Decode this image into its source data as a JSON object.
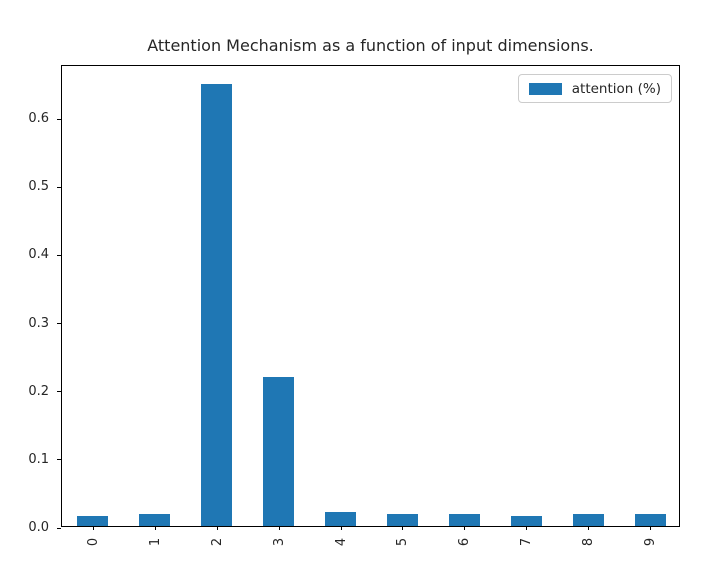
{
  "figure": {
    "title": "Attention Mechanism as a function of input dimensions."
  },
  "legend": {
    "label": "attention (%)"
  },
  "colors": {
    "bar": "#1f77b4",
    "axis": "#000000",
    "text": "#262626",
    "legend_border": "#cccccc",
    "background": "#ffffff"
  },
  "chart_data": {
    "type": "bar",
    "title": "Attention Mechanism as a function of input dimensions.",
    "categories": [
      "0",
      "1",
      "2",
      "3",
      "4",
      "5",
      "6",
      "7",
      "8",
      "9"
    ],
    "series": [
      {
        "name": "attention (%)",
        "values": [
          0.015,
          0.018,
          0.649,
          0.219,
          0.02,
          0.017,
          0.017,
          0.014,
          0.018,
          0.017
        ]
      }
    ],
    "xlabel": "",
    "ylabel": "",
    "ylim": [
      0,
      0.678
    ],
    "yticks": [
      0.0,
      0.1,
      0.2,
      0.3,
      0.4,
      0.5,
      0.6
    ],
    "ytick_labels": [
      "0.0",
      "0.1",
      "0.2",
      "0.3",
      "0.4",
      "0.5",
      "0.6"
    ],
    "xtick_rotation_deg": 90,
    "bar_width_fraction": 0.5,
    "legend_position": "upper right",
    "grid": false
  }
}
